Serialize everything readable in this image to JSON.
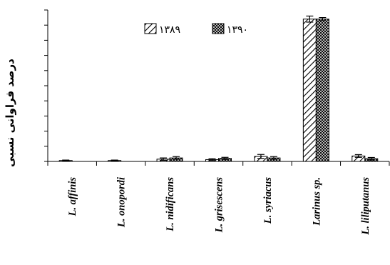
{
  "chart_data": {
    "type": "bar",
    "title": "",
    "xlabel": "",
    "ylabel": "درصد فراوانی نسبی",
    "ylim": [
      0,
      100
    ],
    "grid": false,
    "legend_position": "top",
    "categories": [
      "L. affinis",
      "L. onopordi",
      "L. nidificans",
      "L. grisescens",
      "L. syriacus",
      "Larinus sp.",
      "L. liliputanus"
    ],
    "series": [
      {
        "name": "۱۳۸۹",
        "pattern": "diagonal-hatch",
        "values": [
          0.6,
          0.6,
          1.5,
          1.2,
          3.3,
          94.0,
          3.6
        ],
        "errors": [
          0.3,
          0.3,
          0.8,
          0.6,
          1.3,
          2.0,
          0.9
        ]
      },
      {
        "name": "۱۳۹۰",
        "pattern": "crosshatch",
        "values": [
          0,
          0,
          2.3,
          2.0,
          2.3,
          94.0,
          1.8
        ],
        "errors": [
          0,
          0,
          0.9,
          0.7,
          0.9,
          1.0,
          0.8
        ]
      }
    ],
    "colors": {
      "axis": "#000000",
      "bar_fill": "#ffffff",
      "hatch": "#000000"
    }
  }
}
